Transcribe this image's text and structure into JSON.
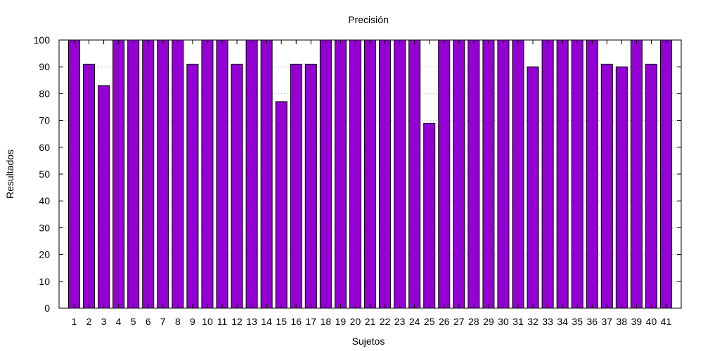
{
  "chart_data": {
    "type": "bar",
    "title": "Precisión",
    "xlabel": "Sujetos",
    "ylabel": "Resultados",
    "ylim": [
      0,
      100
    ],
    "yticks": [
      0,
      10,
      20,
      30,
      40,
      50,
      60,
      70,
      80,
      90,
      100
    ],
    "grid": "y-dotted",
    "bar_color": "#9400d3",
    "categories": [
      "1",
      "2",
      "3",
      "4",
      "5",
      "6",
      "7",
      "8",
      "9",
      "10",
      "11",
      "12",
      "13",
      "14",
      "15",
      "16",
      "17",
      "18",
      "19",
      "20",
      "21",
      "22",
      "23",
      "24",
      "25",
      "26",
      "27",
      "28",
      "29",
      "30",
      "31",
      "32",
      "33",
      "34",
      "35",
      "36",
      "37",
      "38",
      "39",
      "40",
      "41"
    ],
    "values": [
      100,
      91,
      83,
      100,
      100,
      100,
      100,
      100,
      91,
      100,
      100,
      91,
      100,
      100,
      77,
      91,
      91,
      100,
      100,
      100,
      100,
      100,
      100,
      100,
      69,
      100,
      100,
      100,
      100,
      100,
      100,
      90,
      100,
      100,
      100,
      100,
      91,
      90,
      100,
      91,
      100
    ]
  }
}
